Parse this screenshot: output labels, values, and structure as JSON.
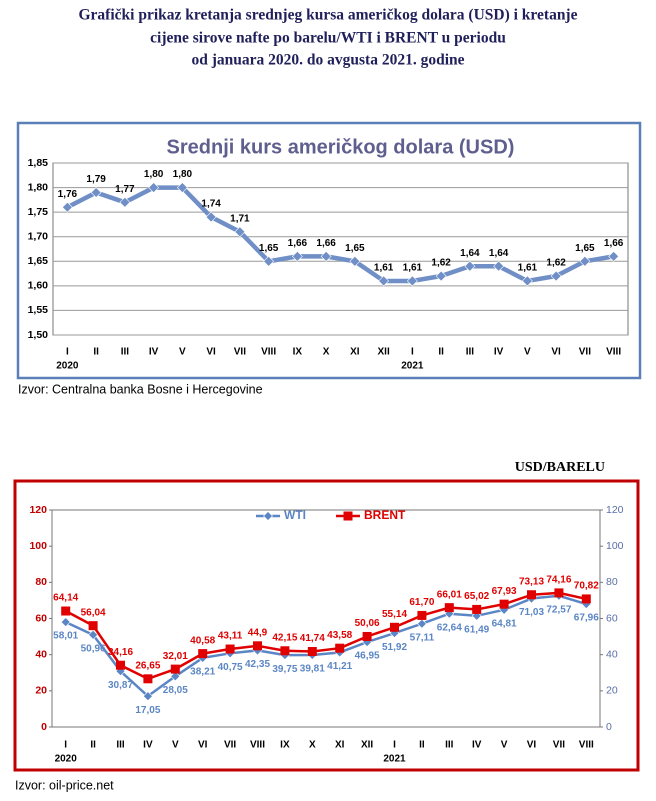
{
  "header": {
    "title_lines": [
      "Grafički prikaz kretanja srednjeg kursa američkog dolara (USD) i kretanje",
      "cijene sirove nafte po barelu/WTI i BRENT u periodu",
      "od januara 2020. do avgusta 2021. godine"
    ]
  },
  "chart_data": [
    {
      "type": "line",
      "title": "Srednji kurs američkog dolara (USD)",
      "categories": [
        "I",
        "II",
        "III",
        "IV",
        "V",
        "VI",
        "VII",
        "VIII",
        "IX",
        "X",
        "XI",
        "XII",
        "I",
        "II",
        "III",
        "IV",
        "V",
        "VI",
        "VII",
        "VIII"
      ],
      "year_row": [
        "2020",
        null,
        null,
        null,
        null,
        null,
        null,
        null,
        null,
        null,
        null,
        null,
        "2021",
        null,
        null,
        null,
        null,
        null,
        null,
        null
      ],
      "values": [
        1.76,
        1.79,
        1.77,
        1.8,
        1.8,
        1.74,
        1.71,
        1.65,
        1.66,
        1.66,
        1.65,
        1.61,
        1.61,
        1.62,
        1.64,
        1.64,
        1.61,
        1.62,
        1.65,
        1.66
      ],
      "value_labels": [
        "1,76",
        "1,79",
        "1,77",
        "1,80",
        "1,80",
        "1,74",
        "1,71",
        "1,65",
        "1,66",
        "1,66",
        "1,65",
        "1,61",
        "1,61",
        "1,62",
        "1,64",
        "1,64",
        "1,61",
        "1,62",
        "1,65",
        "1,66"
      ],
      "color": "#6f8fc6",
      "marker": "diamond",
      "label_position": "above",
      "ylim": [
        1.5,
        1.85
      ],
      "yticks": [
        {
          "value": 1.5,
          "label": "1,50"
        },
        {
          "value": 1.55,
          "label": "1,55"
        },
        {
          "value": 1.6,
          "label": "1,60"
        },
        {
          "value": 1.65,
          "label": "1,65"
        },
        {
          "value": 1.7,
          "label": "1,70"
        },
        {
          "value": 1.75,
          "label": "1,75"
        },
        {
          "value": 1.8,
          "label": "1,80"
        },
        {
          "value": 1.85,
          "label": "1,85"
        }
      ],
      "grid": true,
      "source": "Izvor: Centralna banka Bosne i Hercegovine"
    },
    {
      "type": "line",
      "unit_label": "USD/BARELU",
      "categories": [
        "I",
        "II",
        "III",
        "IV",
        "V",
        "VI",
        "VII",
        "VIII",
        "IX",
        "X",
        "XI",
        "XII",
        "I",
        "II",
        "III",
        "IV",
        "V",
        "VI",
        "VII",
        "VIII"
      ],
      "year_row": [
        "2020",
        null,
        null,
        null,
        null,
        null,
        null,
        null,
        null,
        null,
        null,
        null,
        "2021",
        null,
        null,
        null,
        null,
        null,
        null,
        null
      ],
      "series": [
        {
          "name": "WTI",
          "color": "#5b86c5",
          "marker": "diamond",
          "label_position": "below",
          "values": [
            58.01,
            50.96,
            30.87,
            17.05,
            28.05,
            38.21,
            40.75,
            42.35,
            39.75,
            39.81,
            41.21,
            46.95,
            51.92,
            57.11,
            62.64,
            61.49,
            64.81,
            71.03,
            72.57,
            67.96
          ],
          "value_labels": [
            "58,01",
            "50,96",
            "30,87",
            "17,05",
            "28,05",
            "38,21",
            "40,75",
            "42,35",
            "39,75",
            "39,81",
            "41,21",
            "46,95",
            "51,92",
            "57,11",
            "62,64",
            "61,49",
            "64,81",
            "71,03",
            "72,57",
            "67,96"
          ]
        },
        {
          "name": "BRENT",
          "color": "#e00000",
          "marker": "square",
          "label_position": "above",
          "values": [
            64.14,
            56.04,
            34.16,
            26.65,
            32.01,
            40.58,
            43.11,
            44.9,
            42.15,
            41.74,
            43.58,
            50.06,
            55.14,
            61.7,
            66.01,
            65.02,
            67.93,
            73.13,
            74.16,
            70.82
          ],
          "value_labels": [
            "64,14",
            "56,04",
            "34,16",
            "26,65",
            "32,01",
            "40,58",
            "43,11",
            "44,9",
            "42,15",
            "41,74",
            "43,58",
            "50,06",
            "55,14",
            "61,70",
            "66,01",
            "65,02",
            "67,93",
            "73,13",
            "74,16",
            "70,82"
          ]
        }
      ],
      "ylim": [
        0,
        120
      ],
      "yticks": [
        0,
        20,
        40,
        60,
        80,
        100,
        120
      ],
      "ytick_color": "#c00000",
      "y2lim": [
        0,
        120
      ],
      "y2ticks": [
        0,
        20,
        40,
        60,
        80,
        100,
        120
      ],
      "y2tick_color": "#5b6fa8",
      "grid": false,
      "legend": "top",
      "source": "Izvor: oil-price.net"
    }
  ]
}
